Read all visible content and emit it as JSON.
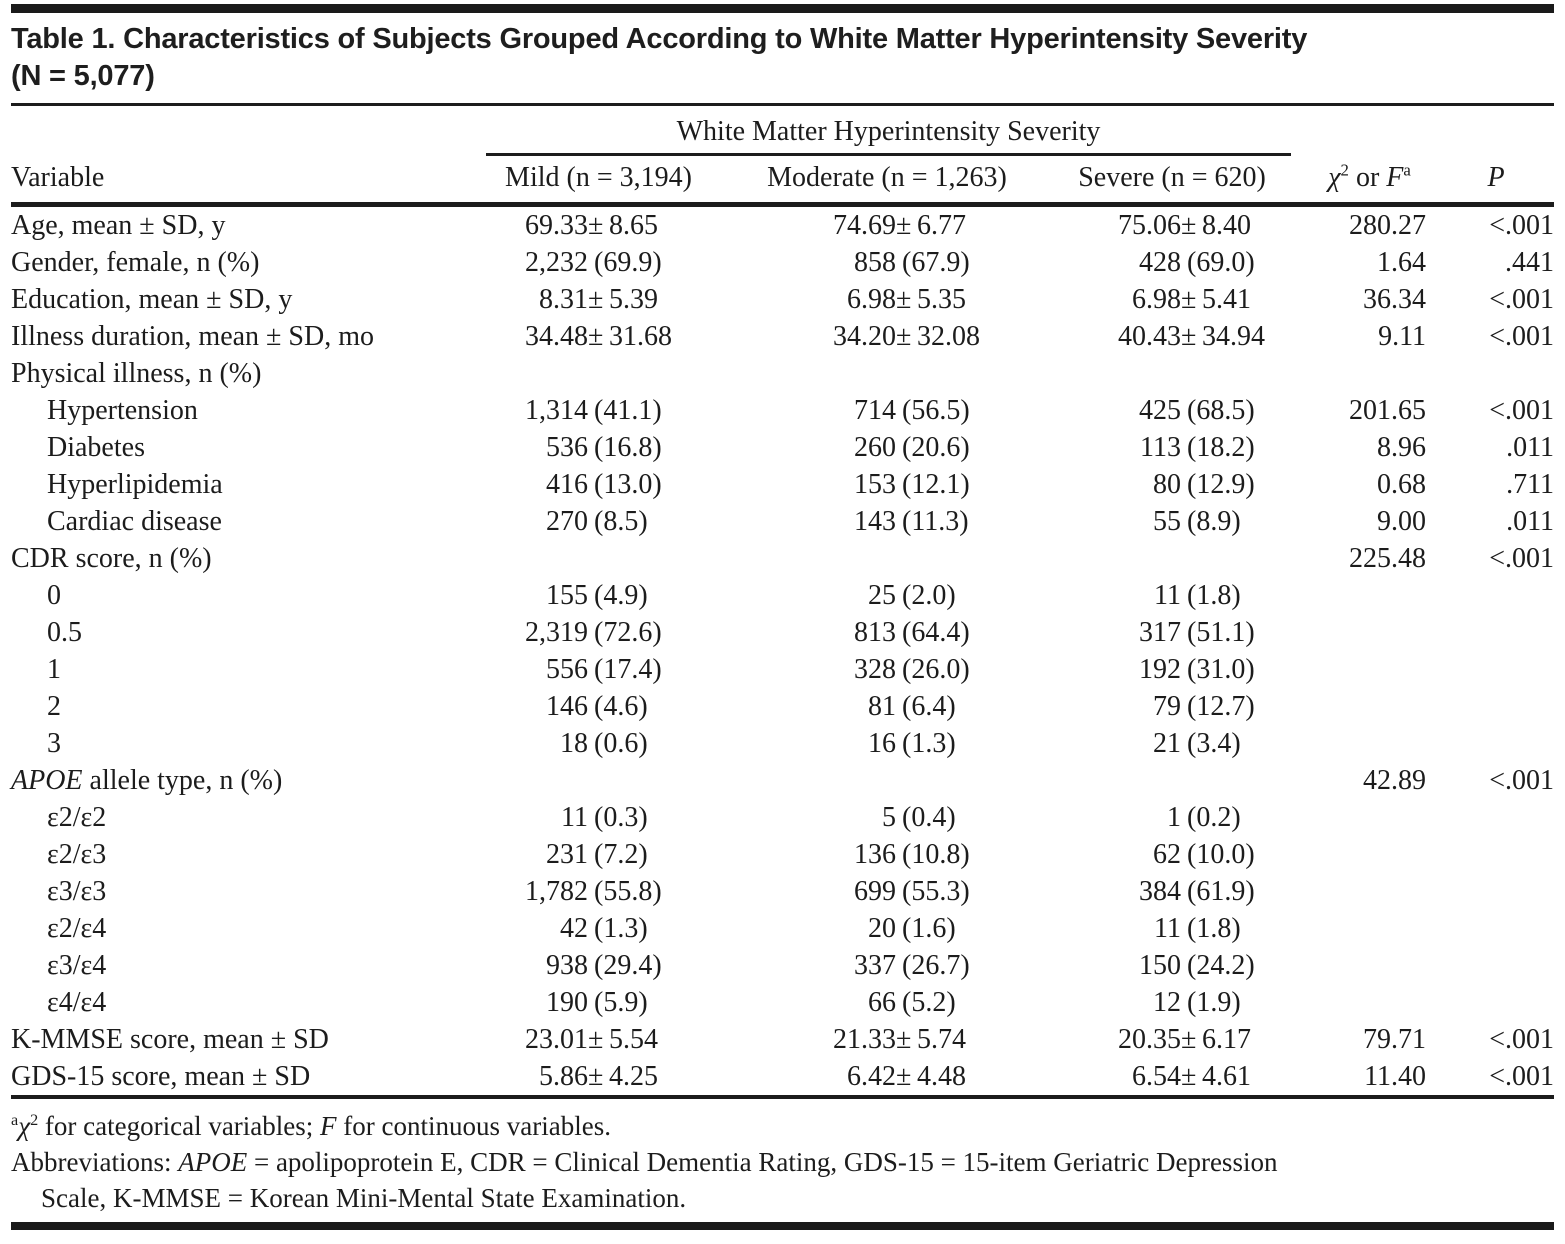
{
  "title": {
    "line1": "Table 1. Characteristics of Subjects Grouped According to White Matter Hyperintensity Severity",
    "line2": "(N = 5,077)"
  },
  "table": {
    "spanner": "White Matter Hyperintensity Severity",
    "columns": {
      "variable": "Variable",
      "mild": "Mild (n = 3,194)",
      "moderate": "Moderate (n = 1,263)",
      "severe": "Severe (n = 620)",
      "stat_parts": [
        {
          "t": "χ",
          "i": true
        },
        {
          "t": "2",
          "sup": true
        },
        {
          "t": " or "
        },
        {
          "t": "F",
          "i": true
        },
        {
          "t": "a",
          "sup": true
        }
      ],
      "p": "P"
    },
    "rows": [
      {
        "label": "Age, mean ± SD, y",
        "indent": false,
        "cells": [
          "69.33±8.65",
          "74.69±6.77",
          "75.06±8.40",
          "280.27",
          "<.001"
        ]
      },
      {
        "label": "Gender, female, n (%)",
        "indent": false,
        "cells": [
          "2,232 (69.9)",
          "858 (67.9)",
          "428 (69.0)",
          "1.64",
          ".441"
        ]
      },
      {
        "label": "Education, mean ± SD, y",
        "indent": false,
        "cells": [
          "8.31±5.39",
          "6.98±5.35",
          "6.98±5.41",
          "36.34",
          "<.001"
        ]
      },
      {
        "label": "Illness duration, mean ± SD, mo",
        "indent": false,
        "cells": [
          "34.48±31.68",
          "34.20±32.08",
          "40.43±34.94",
          "9.11",
          "<.001"
        ]
      },
      {
        "label": "Physical illness, n (%)",
        "indent": false,
        "cells": [
          "",
          "",
          "",
          "",
          ""
        ]
      },
      {
        "label": "Hypertension",
        "indent": true,
        "cells": [
          "1,314 (41.1)",
          "714 (56.5)",
          "425 (68.5)",
          "201.65",
          "<.001"
        ]
      },
      {
        "label": "Diabetes",
        "indent": true,
        "cells": [
          "536 (16.8)",
          "260 (20.6)",
          "113 (18.2)",
          "8.96",
          ".011"
        ]
      },
      {
        "label": "Hyperlipidemia",
        "indent": true,
        "cells": [
          "416 (13.0)",
          "153 (12.1)",
          "80 (12.9)",
          "0.68",
          ".711"
        ]
      },
      {
        "label": "Cardiac disease",
        "indent": true,
        "cells": [
          "270 (8.5)",
          "143 (11.3)",
          "55 (8.9)",
          "9.00",
          ".011"
        ]
      },
      {
        "label": "CDR score, n (%)",
        "indent": false,
        "cells": [
          "",
          "",
          "",
          "225.48",
          "<.001"
        ]
      },
      {
        "label": "0",
        "indent": true,
        "cells": [
          "155 (4.9)",
          "25 (2.0)",
          "11 (1.8)",
          "",
          ""
        ]
      },
      {
        "label": "0.5",
        "indent": true,
        "cells": [
          "2,319 (72.6)",
          "813 (64.4)",
          "317 (51.1)",
          "",
          ""
        ]
      },
      {
        "label": "1",
        "indent": true,
        "cells": [
          "556 (17.4)",
          "328 (26.0)",
          "192 (31.0)",
          "",
          ""
        ]
      },
      {
        "label": "2",
        "indent": true,
        "cells": [
          "146 (4.6)",
          "81 (6.4)",
          "79 (12.7)",
          "",
          ""
        ]
      },
      {
        "label": "3",
        "indent": true,
        "cells": [
          "18 (0.6)",
          "16 (1.3)",
          "21 (3.4)",
          "",
          ""
        ]
      },
      {
        "label_parts": [
          {
            "t": "APOE",
            "i": true
          },
          {
            "t": " allele type, n (%)"
          }
        ],
        "indent": false,
        "cells": [
          "",
          "",
          "",
          "42.89",
          "<.001"
        ]
      },
      {
        "label": "ε2/ε2",
        "indent": true,
        "cells": [
          "11 (0.3)",
          "5 (0.4)",
          "1 (0.2)",
          "",
          ""
        ]
      },
      {
        "label": "ε2/ε3",
        "indent": true,
        "cells": [
          "231 (7.2)",
          "136 (10.8)",
          "62 (10.0)",
          "",
          ""
        ]
      },
      {
        "label": "ε3/ε3",
        "indent": true,
        "cells": [
          "1,782 (55.8)",
          "699 (55.3)",
          "384 (61.9)",
          "",
          ""
        ]
      },
      {
        "label": "ε2/ε4",
        "indent": true,
        "cells": [
          "42 (1.3)",
          "20 (1.6)",
          "11 (1.8)",
          "",
          ""
        ]
      },
      {
        "label": "ε3/ε4",
        "indent": true,
        "cells": [
          "938 (29.4)",
          "337 (26.7)",
          "150 (24.2)",
          "",
          ""
        ]
      },
      {
        "label": "ε4/ε4",
        "indent": true,
        "cells": [
          "190 (5.9)",
          "66 (5.2)",
          "12 (1.9)",
          "",
          ""
        ]
      },
      {
        "label": "K-MMSE score, mean ± SD",
        "indent": false,
        "cells": [
          "23.01±5.54",
          "21.33±5.74",
          "20.35±6.17",
          "79.71",
          "<.001"
        ]
      },
      {
        "label": "GDS-15 score, mean ± SD",
        "indent": false,
        "cells": [
          "5.86±4.25",
          "6.42±4.48",
          "6.54±4.61",
          "11.40",
          "<.001"
        ]
      }
    ]
  },
  "footnotes": [
    {
      "indent": false,
      "parts": [
        {
          "t": "a",
          "sup": true
        },
        {
          "t": "χ",
          "i": true
        },
        {
          "t": "2",
          "sup": true
        },
        {
          "t": " for categorical variables; "
        },
        {
          "t": "F",
          "i": true
        },
        {
          "t": " for continuous variables."
        }
      ]
    },
    {
      "indent": false,
      "parts": [
        {
          "t": "Abbreviations: "
        },
        {
          "t": "APOE",
          "i": true
        },
        {
          "t": " = apolipoprotein E, CDR = Clinical Dementia Rating, GDS-15 = 15-item Geriatric Depression"
        }
      ]
    },
    {
      "indent": true,
      "parts": [
        {
          "t": "Scale, K-MMSE = Korean Mini-Mental State Examination."
        }
      ]
    }
  ],
  "colors": {
    "text": "#1c1c1c",
    "rule": "#1a1a1a",
    "background": "#ffffff"
  }
}
